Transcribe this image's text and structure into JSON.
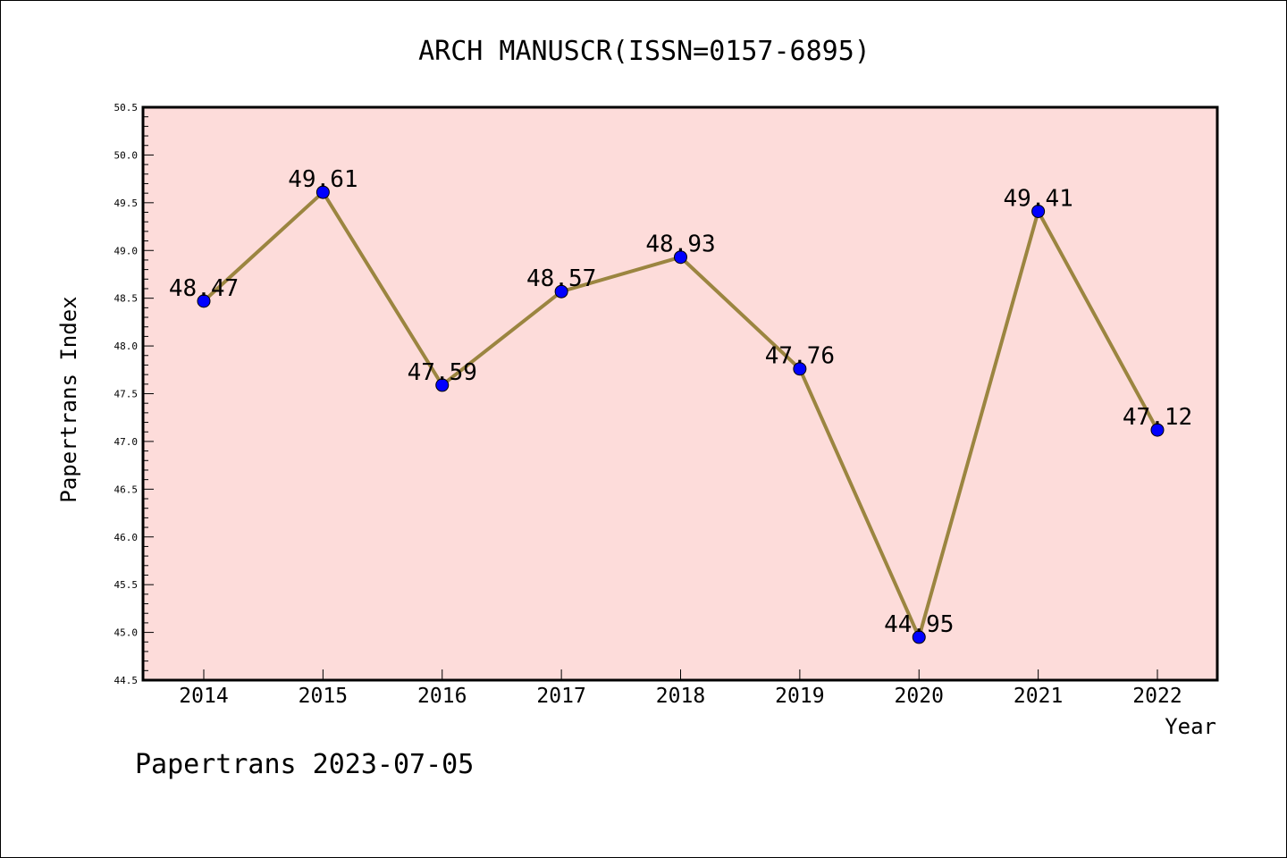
{
  "chart_data": {
    "type": "line",
    "title": "ARCH MANUSCR(ISSN=0157-6895)",
    "xlabel": "Year",
    "ylabel": "Papertrans Index",
    "categories": [
      "2014",
      "2015",
      "2016",
      "2017",
      "2018",
      "2019",
      "2020",
      "2021",
      "2022"
    ],
    "series": [
      {
        "values": [
          48.47,
          49.61,
          47.59,
          48.57,
          48.93,
          47.76,
          44.95,
          49.41,
          47.12
        ],
        "data_labels": [
          "48.47",
          "49.61",
          "47.59",
          "48.57",
          "48.93",
          "47.76",
          "44.95",
          "49.41",
          "47.12"
        ]
      }
    ],
    "ylim": [
      44.5,
      50.5
    ],
    "yticks": [
      "44.5",
      "45.0",
      "45.5",
      "46.0",
      "46.5",
      "47.0",
      "47.5",
      "48.0",
      "48.5",
      "49.0",
      "49.5",
      "50.0",
      "50.5"
    ],
    "grid": false,
    "legend": "none"
  },
  "footer": "Papertrans 2023-07-05",
  "colors": {
    "plot_background": "#fddcda",
    "line": "#9b8540",
    "marker": "#0000ff",
    "axis": "#000000"
  }
}
